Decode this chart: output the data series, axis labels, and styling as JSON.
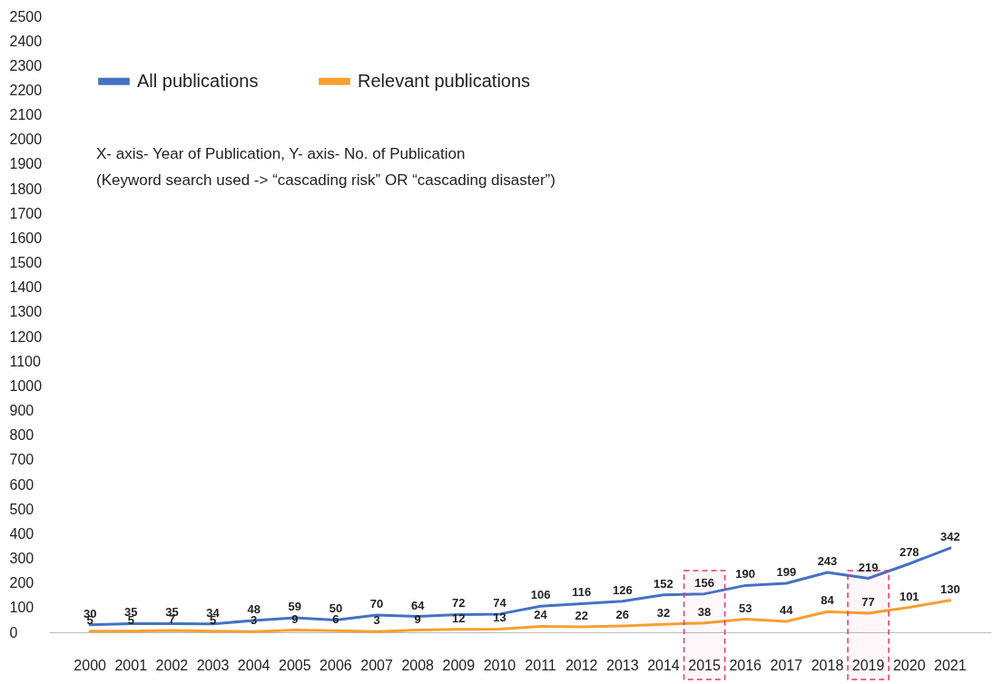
{
  "chart_data": {
    "type": "line",
    "categories": [
      "2000",
      "2001",
      "2002",
      "2003",
      "2004",
      "2005",
      "2006",
      "2007",
      "2008",
      "2009",
      "2010",
      "2011",
      "2012",
      "2013",
      "2014",
      "2015",
      "2016",
      "2017",
      "2018",
      "2019",
      "2020",
      "2021"
    ],
    "series": [
      {
        "name": "All publications",
        "color": "#4472c4",
        "values": [
          30,
          35,
          35,
          34,
          48,
          59,
          50,
          70,
          64,
          72,
          74,
          106,
          116,
          126,
          152,
          156,
          190,
          199,
          243,
          219,
          278,
          342
        ]
      },
      {
        "name": "Relevant publications",
        "color": "#f7a030",
        "values": [
          5,
          5,
          7,
          5,
          3,
          9,
          6,
          3,
          9,
          12,
          13,
          24,
          22,
          26,
          32,
          38,
          53,
          44,
          84,
          77,
          101,
          130
        ]
      }
    ],
    "ylim": [
      0,
      2500
    ],
    "yticks": [
      0,
      100,
      200,
      300,
      400,
      500,
      600,
      700,
      800,
      900,
      1000,
      1100,
      1200,
      1300,
      1400,
      1500,
      1600,
      1700,
      1800,
      1900,
      2000,
      2100,
      2200,
      2300,
      2400,
      2500
    ],
    "grid": false,
    "legend": "top left",
    "data_labels": true,
    "marker": "none",
    "line_style": "solid",
    "annotations": [
      "X- axis- Year of Publication, Y- axis- No. of Publication",
      "(Keyword search used -> “cascading risk” OR “cascading disaster”)"
    ],
    "bands": [
      {
        "axis": "x",
        "from": "2015",
        "to": "2015",
        "color": "#e8336d"
      },
      {
        "axis": "x",
        "from": "2019",
        "to": "2019",
        "color": "#e8336d"
      }
    ]
  }
}
